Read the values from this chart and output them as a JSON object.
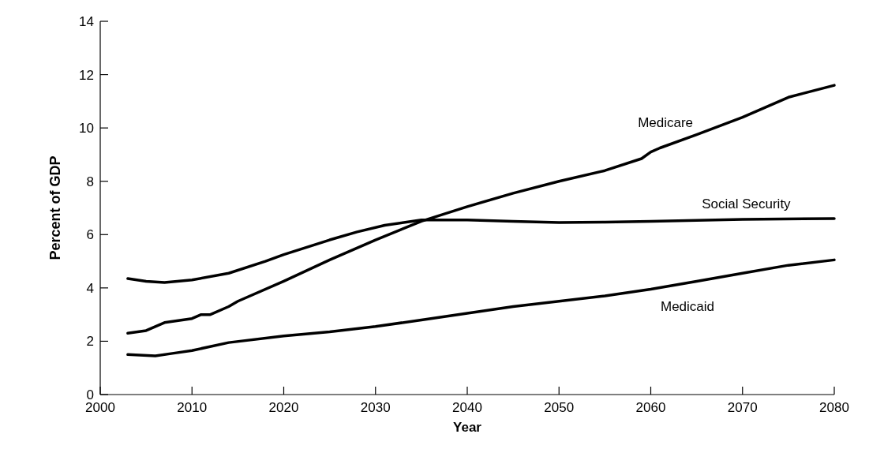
{
  "chart_data": {
    "type": "line",
    "xlabel": "Year",
    "ylabel": "Percent of GDP",
    "xlim": [
      2000,
      2080
    ],
    "xticks": [
      2000,
      2010,
      2020,
      2030,
      2040,
      2050,
      2060,
      2070,
      2080
    ],
    "ylim": [
      0,
      14
    ],
    "yticks": [
      0,
      2,
      4,
      6,
      8,
      10,
      12,
      14
    ],
    "grid": false,
    "marker": "none",
    "line_style": "solid",
    "series": [
      {
        "name": "Medicare",
        "color": "#000000",
        "x": [
          2003,
          2005,
          2007,
          2010,
          2011,
          2012,
          2014,
          2015,
          2020,
          2025,
          2030,
          2035,
          2040,
          2045,
          2050,
          2055,
          2059,
          2060,
          2061,
          2065,
          2070,
          2075,
          2080
        ],
        "values": [
          2.3,
          2.4,
          2.7,
          2.85,
          3.0,
          3.0,
          3.3,
          3.5,
          4.25,
          5.05,
          5.8,
          6.5,
          7.05,
          7.55,
          8.0,
          8.4,
          8.85,
          9.1,
          9.25,
          9.75,
          10.4,
          11.15,
          11.6
        ]
      },
      {
        "name": "Social Security",
        "color": "#000000",
        "x": [
          2003,
          2005,
          2007,
          2010,
          2014,
          2018,
          2020,
          2025,
          2028,
          2031,
          2035,
          2040,
          2045,
          2050,
          2055,
          2060,
          2070,
          2080
        ],
        "values": [
          4.35,
          4.25,
          4.2,
          4.3,
          4.55,
          5.0,
          5.25,
          5.8,
          6.1,
          6.35,
          6.55,
          6.55,
          6.5,
          6.45,
          6.47,
          6.5,
          6.57,
          6.6
        ]
      },
      {
        "name": "Medicaid",
        "color": "#000000",
        "x": [
          2003,
          2006,
          2008,
          2010,
          2014,
          2020,
          2025,
          2030,
          2035,
          2040,
          2045,
          2050,
          2055,
          2060,
          2065,
          2070,
          2075,
          2080
        ],
        "values": [
          1.5,
          1.45,
          1.55,
          1.65,
          1.95,
          2.2,
          2.35,
          2.55,
          2.8,
          3.05,
          3.3,
          3.5,
          3.7,
          3.95,
          4.25,
          4.55,
          4.85,
          5.05
        ]
      }
    ]
  }
}
